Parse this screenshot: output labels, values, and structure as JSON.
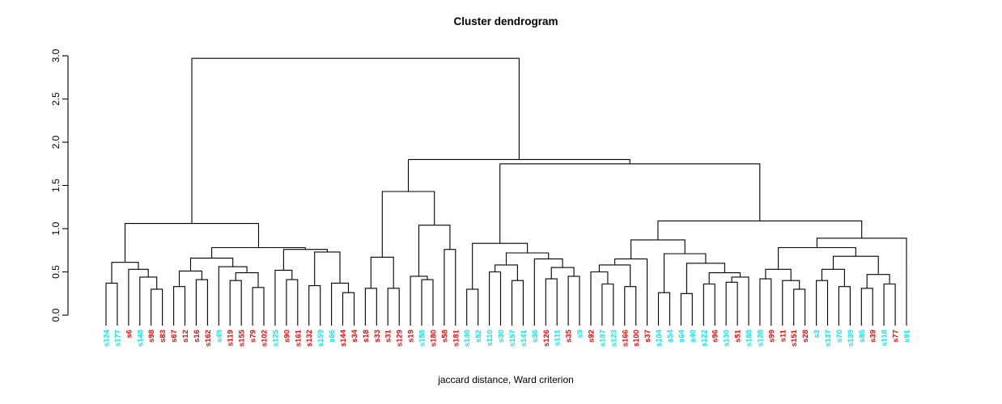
{
  "chart_data": {
    "type": "dendrogram",
    "title": "Cluster dendrogram",
    "xlabel": "jaccard distance, Ward criterion",
    "ylim": [
      0,
      3
    ],
    "yticks": [
      "0.0",
      "0.5",
      "1.0",
      "1.5",
      "2.0",
      "2.5",
      "3.0"
    ],
    "root_height": 2.97,
    "grid": false,
    "line_color": "#000000",
    "label_palette": {
      "cyan": "#00EEEE",
      "red": "#FF0000"
    },
    "leaves": [
      {
        "label": "s124",
        "color": "cyan"
      },
      {
        "label": "s177",
        "color": "cyan"
      },
      {
        "label": "s6",
        "color": "red"
      },
      {
        "label": "s148",
        "color": "cyan"
      },
      {
        "label": "s98",
        "color": "red"
      },
      {
        "label": "s83",
        "color": "red"
      },
      {
        "label": "s67",
        "color": "red"
      },
      {
        "label": "s12",
        "color": "red"
      },
      {
        "label": "s16",
        "color": "red"
      },
      {
        "label": "s162",
        "color": "red"
      },
      {
        "label": "s49",
        "color": "cyan"
      },
      {
        "label": "s119",
        "color": "red"
      },
      {
        "label": "s155",
        "color": "red"
      },
      {
        "label": "s79",
        "color": "red"
      },
      {
        "label": "s102",
        "color": "red"
      },
      {
        "label": "s125",
        "color": "cyan"
      },
      {
        "label": "s90",
        "color": "red"
      },
      {
        "label": "s161",
        "color": "red"
      },
      {
        "label": "s132",
        "color": "red"
      },
      {
        "label": "s159",
        "color": "cyan"
      },
      {
        "label": "s66",
        "color": "cyan"
      },
      {
        "label": "s144",
        "color": "red"
      },
      {
        "label": "s34",
        "color": "red"
      },
      {
        "label": "s18",
        "color": "red"
      },
      {
        "label": "s33",
        "color": "red"
      },
      {
        "label": "s31",
        "color": "red"
      },
      {
        "label": "s129",
        "color": "red"
      },
      {
        "label": "s19",
        "color": "red"
      },
      {
        "label": "s158",
        "color": "cyan"
      },
      {
        "label": "s180",
        "color": "red"
      },
      {
        "label": "s58",
        "color": "red"
      },
      {
        "label": "s181",
        "color": "red"
      },
      {
        "label": "s140",
        "color": "cyan"
      },
      {
        "label": "s52",
        "color": "cyan"
      },
      {
        "label": "s110",
        "color": "cyan"
      },
      {
        "label": "s30",
        "color": "cyan"
      },
      {
        "label": "s157",
        "color": "cyan"
      },
      {
        "label": "s141",
        "color": "cyan"
      },
      {
        "label": "s36",
        "color": "cyan"
      },
      {
        "label": "s126",
        "color": "red"
      },
      {
        "label": "s111",
        "color": "cyan"
      },
      {
        "label": "s35",
        "color": "red"
      },
      {
        "label": "s9",
        "color": "cyan"
      },
      {
        "label": "s92",
        "color": "red"
      },
      {
        "label": "s107",
        "color": "cyan"
      },
      {
        "label": "s123",
        "color": "cyan"
      },
      {
        "label": "s166",
        "color": "red"
      },
      {
        "label": "s100",
        "color": "red"
      },
      {
        "label": "s37",
        "color": "red"
      },
      {
        "label": "s104",
        "color": "cyan"
      },
      {
        "label": "s54",
        "color": "cyan"
      },
      {
        "label": "s64",
        "color": "cyan"
      },
      {
        "label": "s40",
        "color": "cyan"
      },
      {
        "label": "s122",
        "color": "cyan"
      },
      {
        "label": "s96",
        "color": "red"
      },
      {
        "label": "s130",
        "color": "cyan"
      },
      {
        "label": "s51",
        "color": "red"
      },
      {
        "label": "s188",
        "color": "cyan"
      },
      {
        "label": "s128",
        "color": "cyan"
      },
      {
        "label": "s99",
        "color": "red"
      },
      {
        "label": "s11",
        "color": "red"
      },
      {
        "label": "s151",
        "color": "red"
      },
      {
        "label": "s28",
        "color": "red"
      },
      {
        "label": "s3",
        "color": "cyan"
      },
      {
        "label": "s137",
        "color": "cyan"
      },
      {
        "label": "s70",
        "color": "cyan"
      },
      {
        "label": "s139",
        "color": "cyan"
      },
      {
        "label": "s85",
        "color": "cyan"
      },
      {
        "label": "s39",
        "color": "red"
      },
      {
        "label": "s118",
        "color": "cyan"
      },
      {
        "label": "s77",
        "color": "red"
      },
      {
        "label": "s91",
        "color": "cyan"
      }
    ],
    "tree": [
      2.97,
      [
        1.06,
        [
          0.61,
          [
            0.37,
            "s124",
            "s177"
          ],
          [
            0.53,
            "s6",
            [
              0.44,
              "s148",
              [
                0.3,
                "s98",
                "s83"
              ]
            ]
          ]
        ],
        [
          0.78,
          [
            0.66,
            [
              0.51,
              [
                0.33,
                "s67",
                "s12"
              ],
              [
                0.41,
                "s16",
                "s162"
              ]
            ],
            [
              0.56,
              "s49",
              [
                0.49,
                [
                  0.4,
                  "s119",
                  "s155"
                ],
                [
                  0.32,
                  "s79",
                  "s102"
                ]
              ]
            ]
          ],
          [
            0.76,
            [
              0.52,
              "s125",
              [
                0.41,
                "s90",
                "s161"
              ]
            ],
            [
              0.73,
              [
                0.34,
                "s132",
                "s159"
              ],
              [
                0.37,
                "s66",
                [
                  0.26,
                  "s144",
                  "s34"
                ]
              ]
            ]
          ]
        ]
      ],
      [
        1.8,
        [
          1.43,
          [
            0.67,
            [
              0.31,
              "s18",
              "s33"
            ],
            [
              0.31,
              "s31",
              "s129"
            ]
          ],
          [
            1.04,
            [
              0.45,
              "s19",
              [
                0.41,
                "s158",
                "s180"
              ]
            ],
            [
              0.76,
              "s58",
              "s181"
            ]
          ]
        ],
        [
          1.75,
          [
            0.83,
            [
              0.3,
              "s140",
              "s52"
            ],
            [
              0.72,
              [
                0.58,
                [
                  0.5,
                  "s110",
                  "s30"
                ],
                [
                  0.4,
                  "s157",
                  "s141"
                ]
              ],
              [
                0.65,
                "s36",
                [
                  0.55,
                  [
                    0.42,
                    "s126",
                    "s111"
                  ],
                  [
                    0.45,
                    "s35",
                    "s9"
                  ]
                ]
              ]
            ]
          ],
          [
            1.09,
            [
              0.87,
              [
                0.65,
                [
                  0.58,
                  [
                    0.5,
                    "s92",
                    [
                      0.36,
                      "s107",
                      "s123"
                    ]
                  ],
                  [
                    0.33,
                    "s166",
                    "s100"
                  ]
                ],
                "s37"
              ],
              [
                0.71,
                [
                  0.26,
                  "s104",
                  "s54"
                ],
                [
                  0.6,
                  [
                    0.25,
                    "s64",
                    "s40"
                  ],
                  [
                    0.49,
                    [
                      0.36,
                      "s122",
                      "s96"
                    ],
                    [
                      0.44,
                      [
                        0.38,
                        "s130",
                        "s51"
                      ],
                      "s188"
                    ]
                  ]
                ]
              ]
            ],
            [
              0.89,
              [
                0.78,
                [
                  0.53,
                  [
                    0.42,
                    "s128",
                    "s99"
                  ],
                  [
                    0.4,
                    "s11",
                    [
                      0.3,
                      "s151",
                      "s28"
                    ]
                  ]
                ],
                [
                  0.68,
                  [
                    0.53,
                    [
                      0.4,
                      "s3",
                      "s137"
                    ],
                    [
                      0.33,
                      "s70",
                      "s139"
                    ]
                  ],
                  [
                    0.47,
                    [
                      0.31,
                      "s85",
                      "s39"
                    ],
                    [
                      0.36,
                      "s118",
                      "s77"
                    ]
                  ]
                ]
              ],
              "s91"
            ]
          ]
        ]
      ]
    ]
  }
}
